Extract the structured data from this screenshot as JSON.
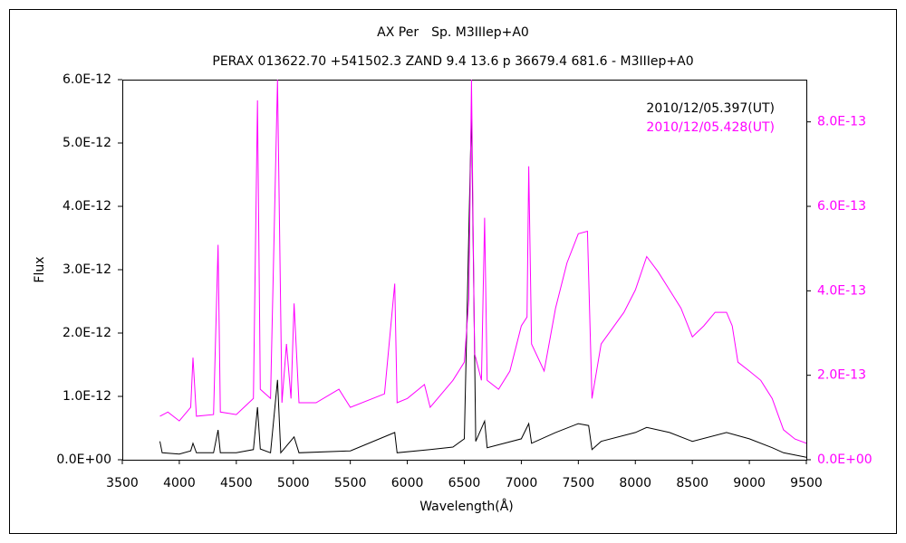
{
  "chart_data": {
    "type": "line",
    "title": "AX Per　Sp. M3IIIep+A0",
    "subtitle": "PERAX 013622.70 +541502.3 ZAND 9.4 13.6 p 36679.4 681.6 - M3IIIep+A0",
    "x_label": "Wavelength(Å)",
    "y_label": "Flux",
    "xlim": [
      3500,
      9500
    ],
    "xticks": [
      3500,
      4000,
      4500,
      5000,
      5500,
      6000,
      6500,
      7000,
      7500,
      8000,
      8500,
      9000,
      9500
    ],
    "ylim": [
      0,
      6e-12
    ],
    "yticks": [
      {
        "value": 0,
        "label": "0.0E+00"
      },
      {
        "value": 1e-12,
        "label": "1.0E-12"
      },
      {
        "value": 2e-12,
        "label": "2.0E-12"
      },
      {
        "value": 3e-12,
        "label": "3.0E-12"
      },
      {
        "value": 4e-12,
        "label": "4.0E-12"
      },
      {
        "value": 5e-12,
        "label": "5.0E-12"
      },
      {
        "value": 6e-12,
        "label": "6.0E-12"
      }
    ],
    "y2lim": [
      0,
      9e-13
    ],
    "y2ticks": [
      {
        "value": 0,
        "label": "0.0E+00"
      },
      {
        "value": 2e-13,
        "label": "2.0E-13"
      },
      {
        "value": 4e-13,
        "label": "4.0E-13"
      },
      {
        "value": 6e-13,
        "label": "6.0E-13"
      },
      {
        "value": 8e-13,
        "label": "8.0E-13"
      }
    ],
    "legend": "top-right",
    "series": [
      {
        "name": "2010/12/05.397(UT)",
        "color": "#000000",
        "x": [
          3830,
          3850,
          4000,
          4100,
          4120,
          4150,
          4300,
          4340,
          4360,
          4500,
          4650,
          4686,
          4710,
          4800,
          4861,
          4890,
          5007,
          5050,
          5500,
          5890,
          5910,
          6200,
          6400,
          6500,
          6563,
          6600,
          6678,
          6700,
          7000,
          7065,
          7090,
          7300,
          7500,
          7590,
          7620,
          7700,
          8000,
          8100,
          8300,
          8500,
          8800,
          9000,
          9200,
          9300,
          9500
        ],
        "values": [
          2.9e-13,
          1.1e-13,
          9e-14,
          1.4e-13,
          2.6e-13,
          1.1e-13,
          1.1e-13,
          4.7e-13,
          1.1e-13,
          1.1e-13,
          1.6e-13,
          8.3e-13,
          1.7e-13,
          1.1e-13,
          1.26e-12,
          1.1e-13,
          3.6e-13,
          1.1e-13,
          1.4e-13,
          4.3e-13,
          1.1e-13,
          1.6e-13,
          2e-13,
          3.3e-13,
          5.51e-12,
          2.9e-13,
          6.1e-13,
          1.9e-13,
          3.3e-13,
          5.7e-13,
          2.6e-13,
          4.3e-13,
          5.7e-13,
          5.4e-13,
          1.6e-13,
          2.9e-13,
          4.3e-13,
          5.1e-13,
          4.3e-13,
          2.9e-13,
          4.3e-13,
          3.3e-13,
          1.9e-13,
          1.1e-13,
          4e-14
        ]
      },
      {
        "name": "2010/12/05.428(UT)",
        "color": "#ff00ff",
        "axis": "y2",
        "x": [
          3830,
          3900,
          4000,
          4100,
          4120,
          4150,
          4300,
          4340,
          4360,
          4500,
          4650,
          4686,
          4710,
          4800,
          4861,
          4900,
          4940,
          4980,
          5007,
          5050,
          5200,
          5400,
          5500,
          5800,
          5890,
          5910,
          6000,
          6150,
          6200,
          6400,
          6500,
          6540,
          6563,
          6590,
          6650,
          6678,
          6700,
          6800,
          6900,
          7000,
          7050,
          7065,
          7090,
          7200,
          7300,
          7400,
          7500,
          7580,
          7620,
          7700,
          7900,
          8000,
          8100,
          8200,
          8300,
          8400,
          8500,
          8600,
          8700,
          8800,
          8850,
          8900,
          9000,
          9100,
          9200,
          9300,
          9400,
          9500
        ],
        "values": [
          1.03e-13,
          1.13e-13,
          9.2e-14,
          1.24e-13,
          2.42e-13,
          1.03e-13,
          1.07e-13,
          5.09e-13,
          1.13e-13,
          1.07e-13,
          1.45e-13,
          8.51e-13,
          1.67e-13,
          1.45e-13,
          9e-13,
          1.35e-13,
          2.74e-13,
          1.45e-13,
          3.7e-13,
          1.35e-13,
          1.35e-13,
          1.67e-13,
          1.24e-13,
          1.56e-13,
          4.17e-13,
          1.35e-13,
          1.45e-13,
          1.78e-13,
          1.24e-13,
          1.88e-13,
          2.31e-13,
          3.81e-13,
          9e-13,
          2.52e-13,
          1.88e-13,
          5.73e-13,
          1.88e-13,
          1.67e-13,
          2.1e-13,
          3.17e-13,
          3.38e-13,
          6.95e-13,
          2.74e-13,
          2.1e-13,
          3.59e-13,
          4.66e-13,
          5.35e-13,
          5.41e-13,
          1.45e-13,
          2.74e-13,
          3.49e-13,
          4.02e-13,
          4.81e-13,
          4.45e-13,
          4.02e-13,
          3.59e-13,
          2.91e-13,
          3.17e-13,
          3.49e-13,
          3.49e-13,
          3.17e-13,
          2.31e-13,
          2.1e-13,
          1.88e-13,
          1.45e-13,
          7.1e-14,
          4.9e-14,
          3.9e-14
        ]
      }
    ]
  }
}
